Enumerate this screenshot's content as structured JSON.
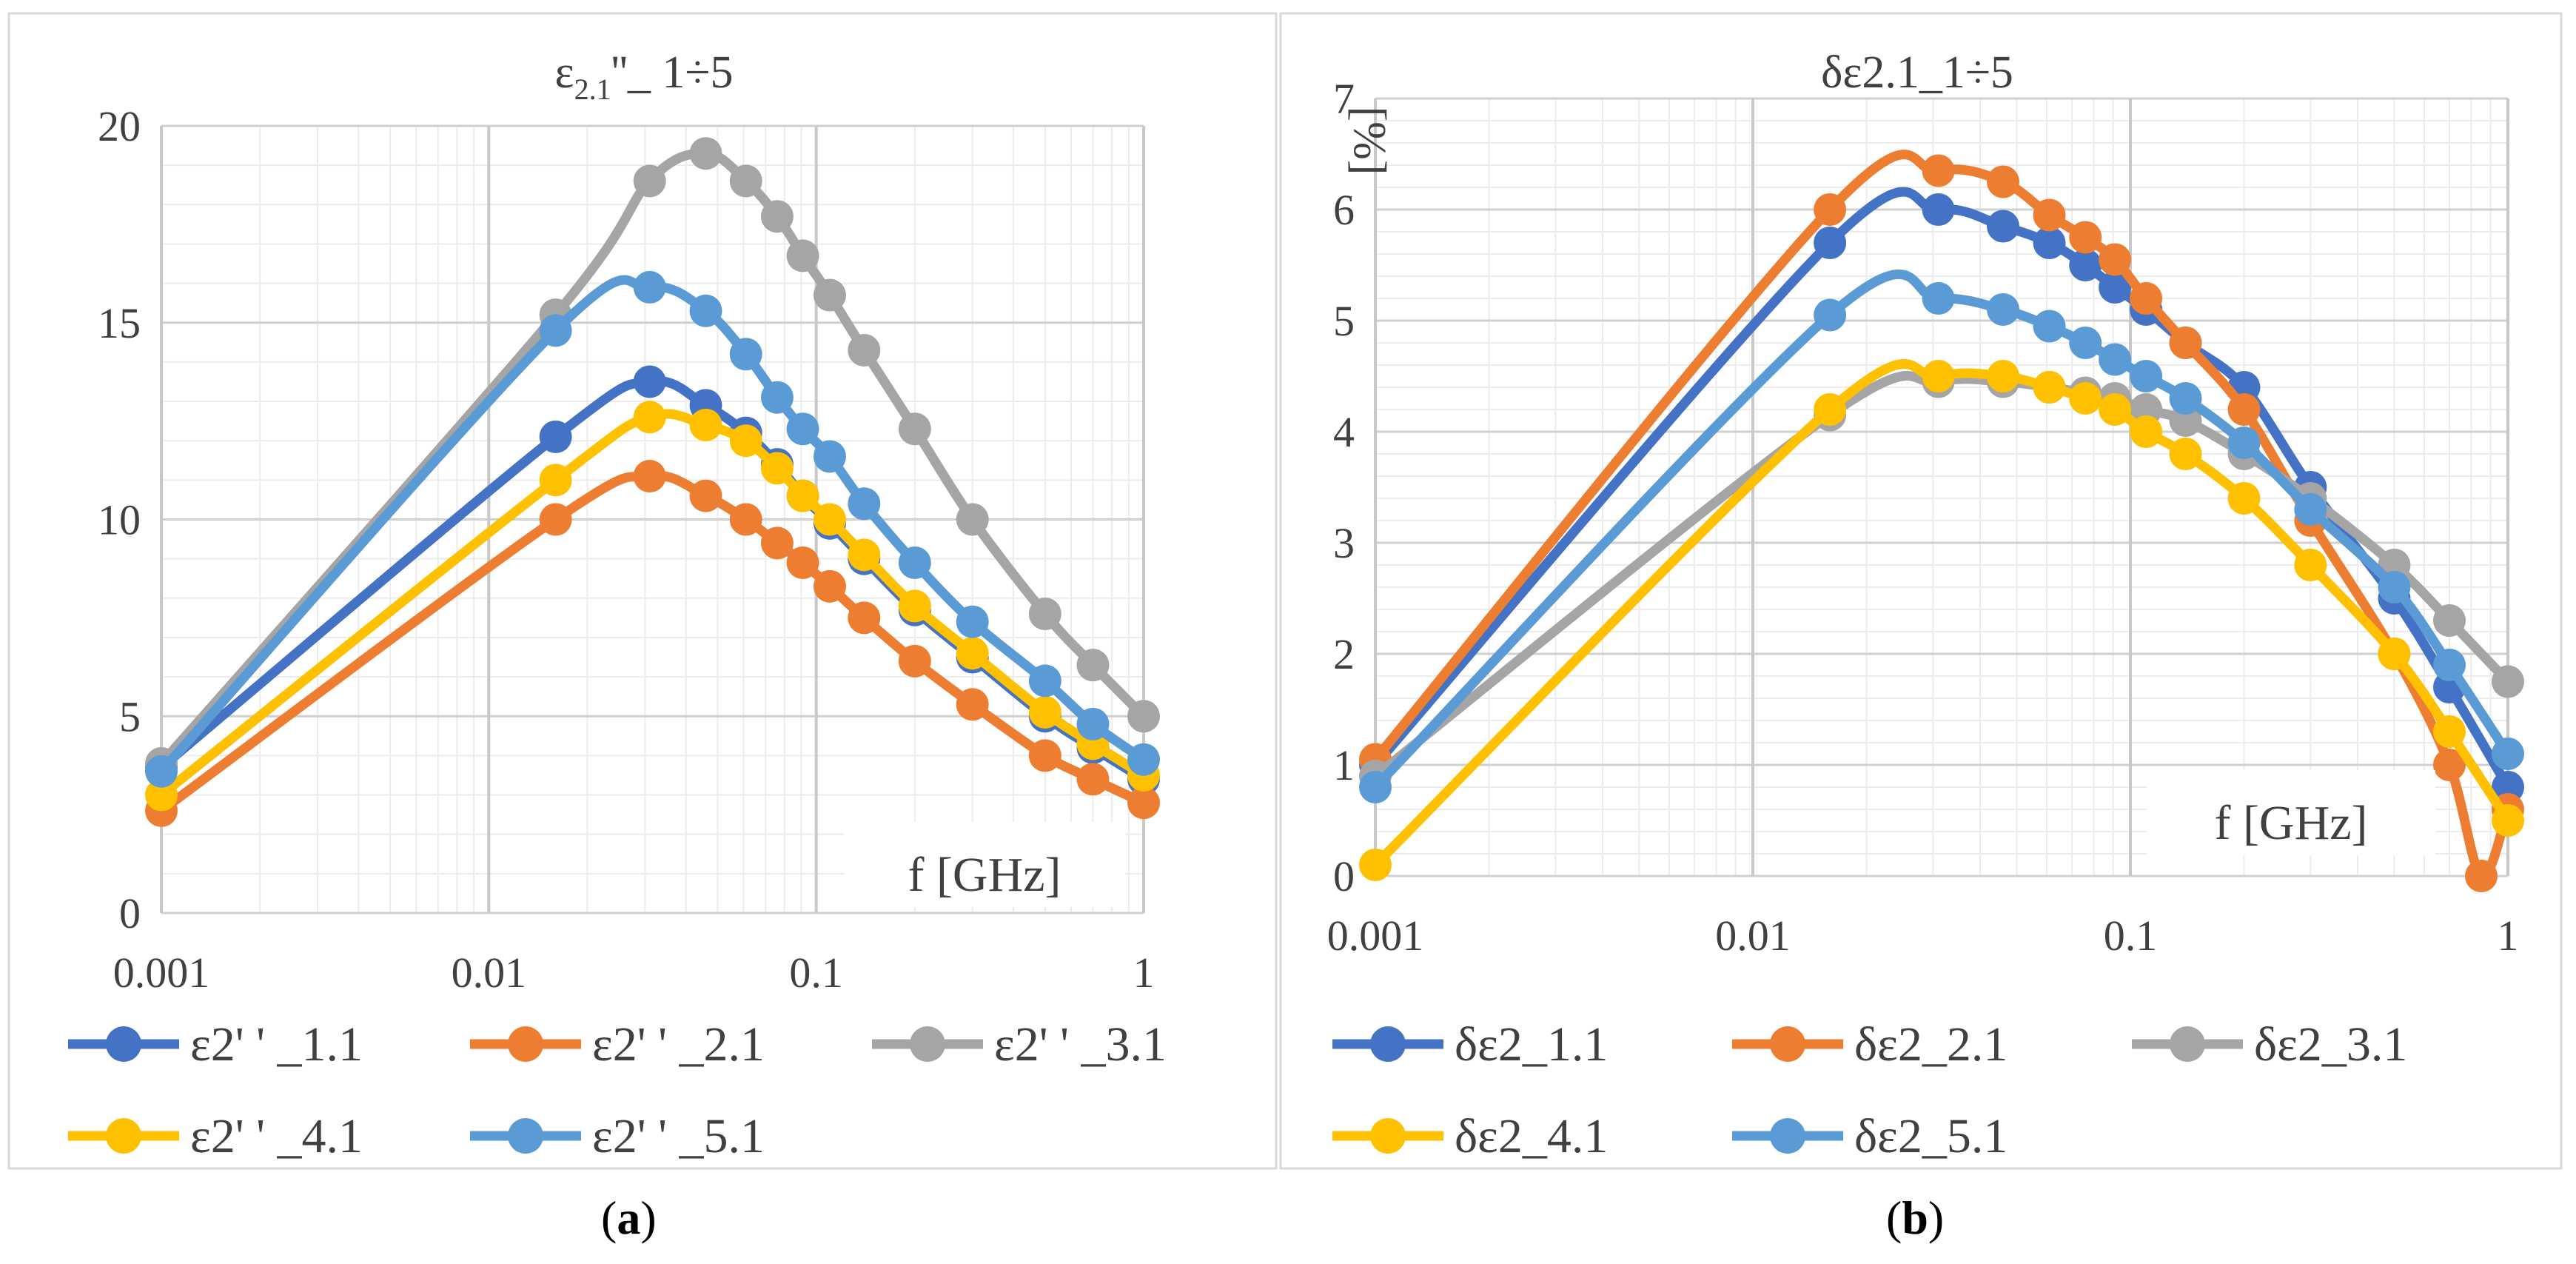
{
  "figure": {
    "caption_a_letter": "a",
    "caption_b_letter": "b"
  },
  "colors": {
    "s1": "#4472C4",
    "s2": "#ED7D31",
    "s3": "#A5A5A5",
    "s4": "#FFC000",
    "s5": "#5B9BD5"
  },
  "chart_data": [
    {
      "type": "line",
      "title_main": "ε",
      "title_sub": "2.1",
      "title_rest": "''_ 1÷5",
      "xlabel": "f [GHz]",
      "ylabel": "",
      "xscale": "log",
      "xlim": [
        0.001,
        1
      ],
      "ylim": [
        0,
        20
      ],
      "xticks": [
        0.001,
        0.01,
        0.1,
        1
      ],
      "xtick_labels": [
        "0.001",
        "0.01",
        "0.1",
        "1"
      ],
      "yticks": [
        0,
        5,
        10,
        15,
        20
      ],
      "ytick_labels": [
        "0",
        "5",
        "10",
        "15",
        "20"
      ],
      "grid": true,
      "legend": "bottom",
      "series": [
        {
          "name": "ε2' ' _1.1",
          "x": [
            0.001,
            0.016,
            0.031,
            0.046,
            0.061,
            0.076,
            0.091,
            0.11,
            0.14,
            0.2,
            0.3,
            0.5,
            0.7,
            1
          ],
          "y": [
            3.7,
            12.1,
            13.5,
            12.9,
            12.2,
            11.4,
            10.6,
            9.9,
            9.0,
            7.7,
            6.5,
            5.0,
            4.2,
            3.4
          ]
        },
        {
          "name": "ε2' ' _2.1",
          "x": [
            0.001,
            0.016,
            0.031,
            0.046,
            0.061,
            0.076,
            0.091,
            0.11,
            0.14,
            0.2,
            0.3,
            0.5,
            0.7,
            1
          ],
          "y": [
            2.6,
            10.0,
            11.1,
            10.6,
            10.0,
            9.4,
            8.9,
            8.3,
            7.5,
            6.4,
            5.3,
            4.0,
            3.4,
            2.8
          ]
        },
        {
          "name": "ε2' ' _3.1",
          "x": [
            0.001,
            0.016,
            0.031,
            0.046,
            0.061,
            0.076,
            0.091,
            0.11,
            0.14,
            0.2,
            0.3,
            0.5,
            0.7,
            1
          ],
          "y": [
            3.8,
            15.2,
            18.6,
            19.3,
            18.6,
            17.7,
            16.7,
            15.7,
            14.3,
            12.3,
            10.0,
            7.6,
            6.3,
            5.0
          ]
        },
        {
          "name": "ε2' ' _4.1",
          "x": [
            0.001,
            0.016,
            0.031,
            0.046,
            0.061,
            0.076,
            0.091,
            0.11,
            0.14,
            0.2,
            0.3,
            0.5,
            0.7,
            1
          ],
          "y": [
            3.0,
            11.0,
            12.6,
            12.4,
            12.0,
            11.3,
            10.6,
            10.0,
            9.1,
            7.8,
            6.6,
            5.1,
            4.3,
            3.5
          ]
        },
        {
          "name": "ε2' ' _5.1",
          "x": [
            0.001,
            0.016,
            0.031,
            0.046,
            0.061,
            0.076,
            0.091,
            0.11,
            0.14,
            0.2,
            0.3,
            0.5,
            0.7,
            1
          ],
          "y": [
            3.6,
            14.8,
            15.9,
            15.3,
            14.2,
            13.1,
            12.3,
            11.6,
            10.4,
            8.9,
            7.4,
            5.9,
            4.8,
            3.9
          ]
        }
      ]
    },
    {
      "type": "line",
      "title": "δε2.1_1÷5",
      "ylabel": "[%]",
      "xlabel": "f [GHz]",
      "xscale": "log",
      "xlim": [
        0.001,
        1
      ],
      "ylim": [
        0,
        7
      ],
      "xticks": [
        0.001,
        0.01,
        0.1,
        1
      ],
      "xtick_labels": [
        "0.001",
        "0.01",
        "0.1",
        "1"
      ],
      "yticks": [
        0,
        1,
        2,
        3,
        4,
        5,
        6,
        7
      ],
      "ytick_labels": [
        "0",
        "1",
        "2",
        "3",
        "4",
        "5",
        "6",
        "7"
      ],
      "grid": true,
      "legend": "bottom",
      "series": [
        {
          "name": "δε2_1.1",
          "x": [
            0.001,
            0.016,
            0.031,
            0.046,
            0.061,
            0.076,
            0.091,
            0.11,
            0.14,
            0.2,
            0.3,
            0.5,
            0.7,
            1
          ],
          "y": [
            1.0,
            5.7,
            6.0,
            5.85,
            5.7,
            5.5,
            5.3,
            5.1,
            4.8,
            4.4,
            3.5,
            2.5,
            1.7,
            0.8
          ]
        },
        {
          "name": "δε2_2.1",
          "x": [
            0.001,
            0.016,
            0.031,
            0.046,
            0.061,
            0.076,
            0.091,
            0.11,
            0.14,
            0.2,
            0.3,
            0.5,
            0.7,
            0.85,
            1
          ],
          "y": [
            1.05,
            6.0,
            6.35,
            6.25,
            5.95,
            5.75,
            5.55,
            5.2,
            4.8,
            4.2,
            3.2,
            2.0,
            1.0,
            0.0,
            0.6
          ]
        },
        {
          "name": "δε2_3.1",
          "x": [
            0.001,
            0.016,
            0.031,
            0.046,
            0.061,
            0.076,
            0.091,
            0.11,
            0.14,
            0.2,
            0.3,
            0.5,
            0.7,
            1
          ],
          "y": [
            0.9,
            4.15,
            4.45,
            4.45,
            4.4,
            4.35,
            4.3,
            4.2,
            4.1,
            3.8,
            3.4,
            2.8,
            2.3,
            1.75
          ]
        },
        {
          "name": "δε2_4.1",
          "x": [
            0.001,
            0.016,
            0.031,
            0.046,
            0.061,
            0.076,
            0.091,
            0.11,
            0.14,
            0.2,
            0.3,
            0.5,
            0.7,
            1
          ],
          "y": [
            0.1,
            4.2,
            4.5,
            4.5,
            4.4,
            4.3,
            4.2,
            4.0,
            3.8,
            3.4,
            2.8,
            2.0,
            1.3,
            0.5
          ]
        },
        {
          "name": "δε2_5.1",
          "x": [
            0.001,
            0.016,
            0.031,
            0.046,
            0.061,
            0.076,
            0.091,
            0.11,
            0.14,
            0.2,
            0.3,
            0.5,
            0.7,
            1
          ],
          "y": [
            0.8,
            5.05,
            5.2,
            5.1,
            4.95,
            4.8,
            4.65,
            4.5,
            4.3,
            3.9,
            3.3,
            2.6,
            1.9,
            1.1
          ]
        }
      ]
    }
  ]
}
